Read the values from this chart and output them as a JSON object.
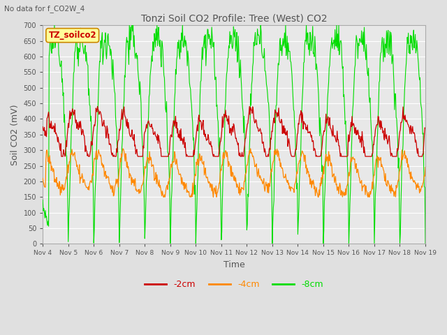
{
  "title": "Tonzi Soil CO2 Profile: Tree (West) CO2",
  "subtitle": "No data for f_CO2W_4",
  "xlabel": "Time",
  "ylabel": "Soil CO2 (mV)",
  "ylim": [
    0,
    700
  ],
  "yticks": [
    0,
    50,
    100,
    150,
    200,
    250,
    300,
    350,
    400,
    450,
    500,
    550,
    600,
    650,
    700
  ],
  "xtick_labels": [
    "Nov 4",
    "Nov 5",
    "Nov 6",
    "Nov 7",
    "Nov 8",
    "Nov 9",
    "Nov 10",
    "Nov 11",
    "Nov 12",
    "Nov 13",
    "Nov 14",
    "Nov 15",
    "Nov 16",
    "Nov 17",
    "Nov 18",
    "Nov 19"
  ],
  "legend_items": [
    "-2cm",
    "-4cm",
    "-8cm"
  ],
  "legend_colors": [
    "#cc0000",
    "#ff8800",
    "#00dd00"
  ],
  "line_colors": [
    "#cc0000",
    "#ff8800",
    "#00dd00"
  ],
  "bg_color": "#e0e0e0",
  "plot_bg_color": "#e8e8e8",
  "grid_color": "#ffffff",
  "title_color": "#555555",
  "axis_label_color": "#555555",
  "tick_color": "#555555",
  "label_box_color": "#ffff99",
  "label_box_text": "TZ_soilco2",
  "label_box_text_color": "#cc0000",
  "label_box_edge_color": "#cc8800"
}
